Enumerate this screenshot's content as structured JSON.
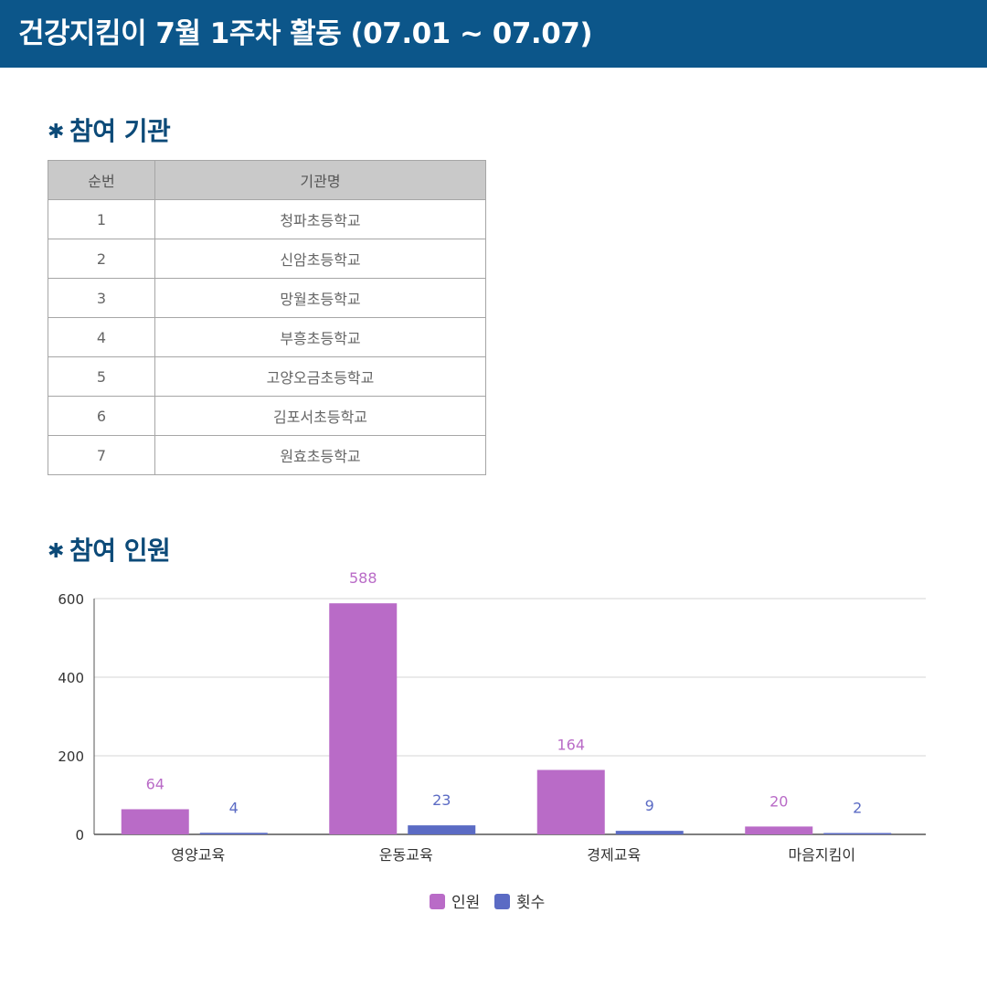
{
  "header": {
    "title": "건강지킴이 7월 1주차 활동 (07.01 ~ 07.07)"
  },
  "section_institutions": {
    "title": "참여 기관",
    "columns": [
      "순번",
      "기관명"
    ],
    "rows": [
      [
        "1",
        "청파초등학교"
      ],
      [
        "2",
        "신암초등학교"
      ],
      [
        "3",
        "망월초등학교"
      ],
      [
        "4",
        "부흥초등학교"
      ],
      [
        "5",
        "고양오금초등학교"
      ],
      [
        "6",
        "김포서초등학교"
      ],
      [
        "7",
        "원효초등학교"
      ]
    ]
  },
  "section_participants": {
    "title": "참여 인원"
  },
  "colors": {
    "header_bg": "#0c568a",
    "series_1": "#b96bc7",
    "series_2": "#5b6bc4"
  },
  "chart_data": {
    "type": "bar",
    "categories": [
      "영양교육",
      "운동교육",
      "경제교육",
      "마음지킴이"
    ],
    "series": [
      {
        "name": "인원",
        "values": [
          64,
          588,
          164,
          20
        ],
        "color": "#b96bc7"
      },
      {
        "name": "횟수",
        "values": [
          4,
          23,
          9,
          2
        ],
        "color": "#5b6bc4"
      }
    ],
    "yticks": [
      "0",
      "200",
      "400",
      "600"
    ],
    "ylim": [
      0,
      600
    ],
    "grid": true,
    "legend_position": "bottom-center",
    "data_labels": true
  }
}
